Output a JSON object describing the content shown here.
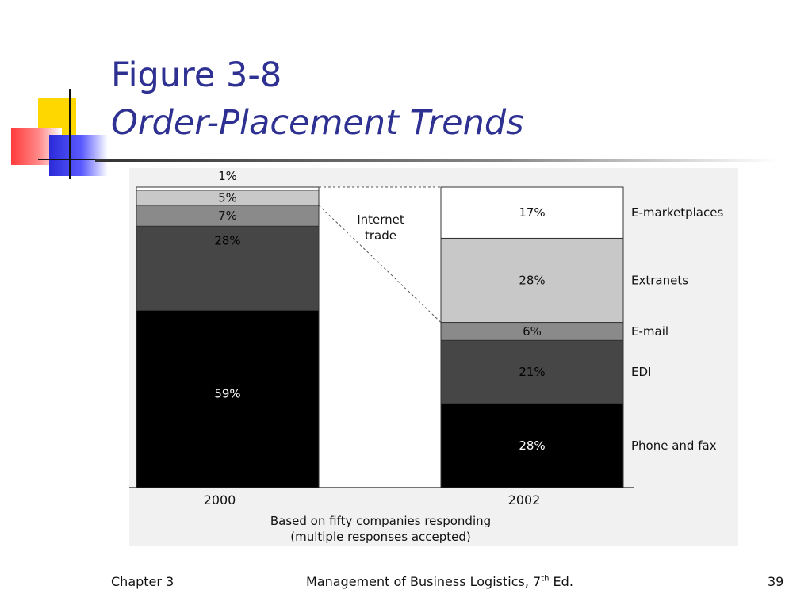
{
  "slide": {
    "title_line1": "Figure 3-8",
    "title_line2": "Order-Placement Trends",
    "title_color": "#2e3192"
  },
  "chart_data": {
    "type": "bar",
    "stacked": true,
    "categories": [
      "2000",
      "2002"
    ],
    "series": [
      {
        "name": "Phone and fax",
        "values": [
          59,
          28
        ],
        "color": "#000000"
      },
      {
        "name": "EDI",
        "values": [
          28,
          21
        ],
        "color": "#464646"
      },
      {
        "name": "E-mail",
        "values": [
          7,
          6
        ],
        "color": "#8a8a8a"
      },
      {
        "name": "Extranets",
        "values": [
          5,
          28
        ],
        "color": "#c8c8c8"
      },
      {
        "name": "E-marketplaces",
        "values": [
          1,
          17
        ],
        "color": "#ffffff"
      }
    ],
    "data_labels": {
      "2000": [
        "59%",
        "28%",
        "7%",
        "5%",
        "1%"
      ],
      "2002": [
        "28%",
        "21%",
        "6%",
        "28%",
        "17%"
      ]
    },
    "annotation": "Internet trade",
    "note_line1": "Based on fifty companies responding",
    "note_line2": "(multiple responses accepted)",
    "ylim": [
      0,
      100
    ]
  },
  "footer": {
    "left": "Chapter 3",
    "center": "Management of Business Logistics, 7",
    "center_sup": "th",
    "center_suffix": " Ed.",
    "right": "39"
  }
}
